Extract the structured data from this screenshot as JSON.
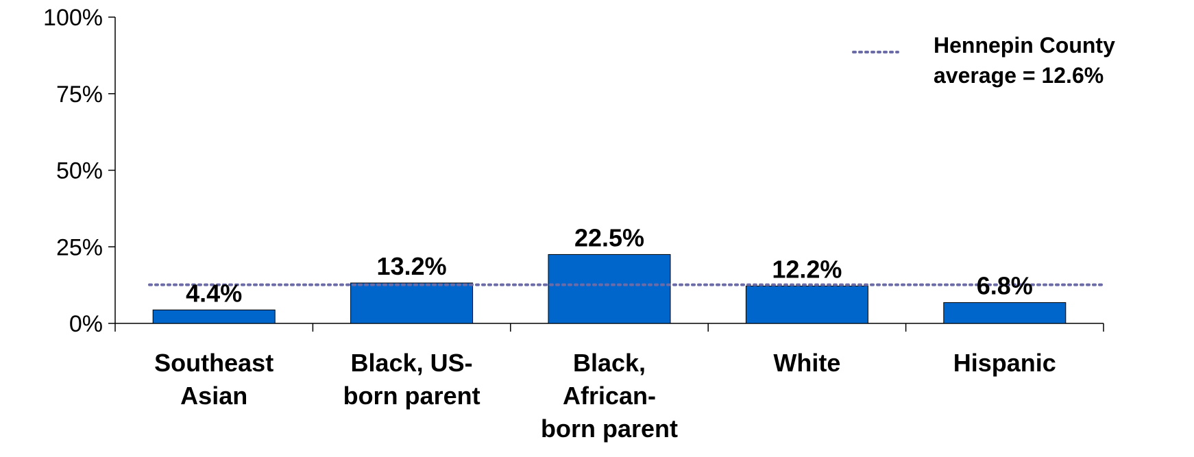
{
  "chart_data": {
    "type": "bar",
    "categories": [
      [
        "Southeast",
        "Asian"
      ],
      [
        "Black, US-",
        "born parent"
      ],
      [
        "Black,",
        "African-",
        "born parent"
      ],
      [
        "White"
      ],
      [
        "Hispanic"
      ]
    ],
    "values": [
      4.4,
      13.2,
      22.5,
      12.2,
      6.8
    ],
    "data_labels": [
      "4.4%",
      "13.2%",
      "22.5%",
      "12.2%",
      "6.8%"
    ],
    "ylim": [
      0,
      100
    ],
    "yticks": [
      0,
      25,
      50,
      75,
      100
    ],
    "ytick_labels": [
      "0%",
      "25%",
      "50%",
      "75%",
      "100%"
    ],
    "reference_line": {
      "value": 12.6,
      "label_lines": [
        "Hennepin County",
        "average = 12.6%"
      ],
      "style": "dotted",
      "color": "#6b6ba8"
    },
    "bar_color": "#0066cc",
    "legend_placement": "top-right",
    "grid": false
  }
}
